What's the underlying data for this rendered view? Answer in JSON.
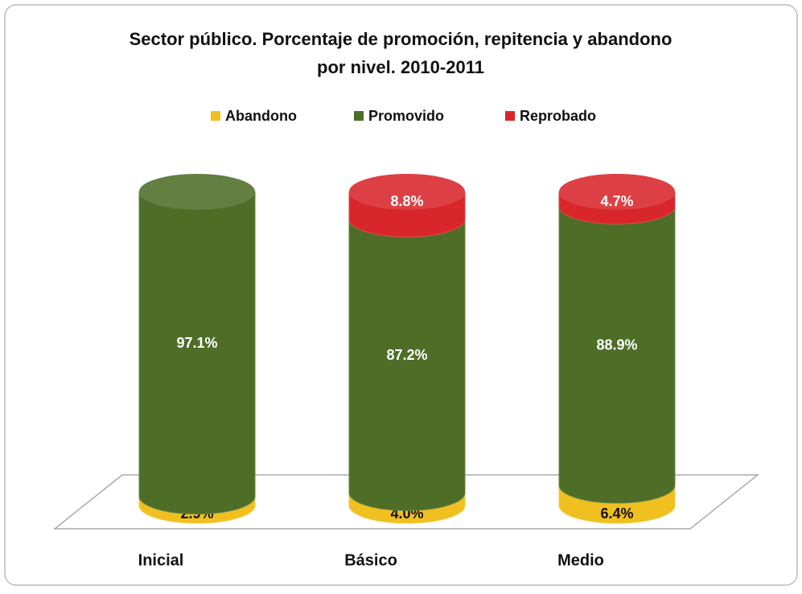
{
  "chart_data": {
    "type": "bar3d_stacked",
    "title": "Sector público. Porcentaje de promoción, repitencia y abandono",
    "subtitle": "por nivel. 2010-2011",
    "categories": [
      "Inicial",
      "Básico",
      "Medio"
    ],
    "legend": "top",
    "series": [
      {
        "name": "Abandono",
        "color": "#f0c020",
        "values": [
          2.9,
          4.0,
          6.4
        ],
        "value_labels": [
          "2.9%",
          "4.0%",
          "6.4%"
        ]
      },
      {
        "name": "Promovido",
        "color": "#4e6e28",
        "values": [
          97.1,
          87.2,
          88.9
        ],
        "value_labels": [
          "97.1%",
          "87.2%",
          "88.9%"
        ]
      },
      {
        "name": "Reprobado",
        "color": "#d8262a",
        "values": [
          null,
          8.8,
          4.7
        ],
        "value_labels": [
          null,
          "8.8%",
          "4.7%"
        ]
      }
    ]
  }
}
